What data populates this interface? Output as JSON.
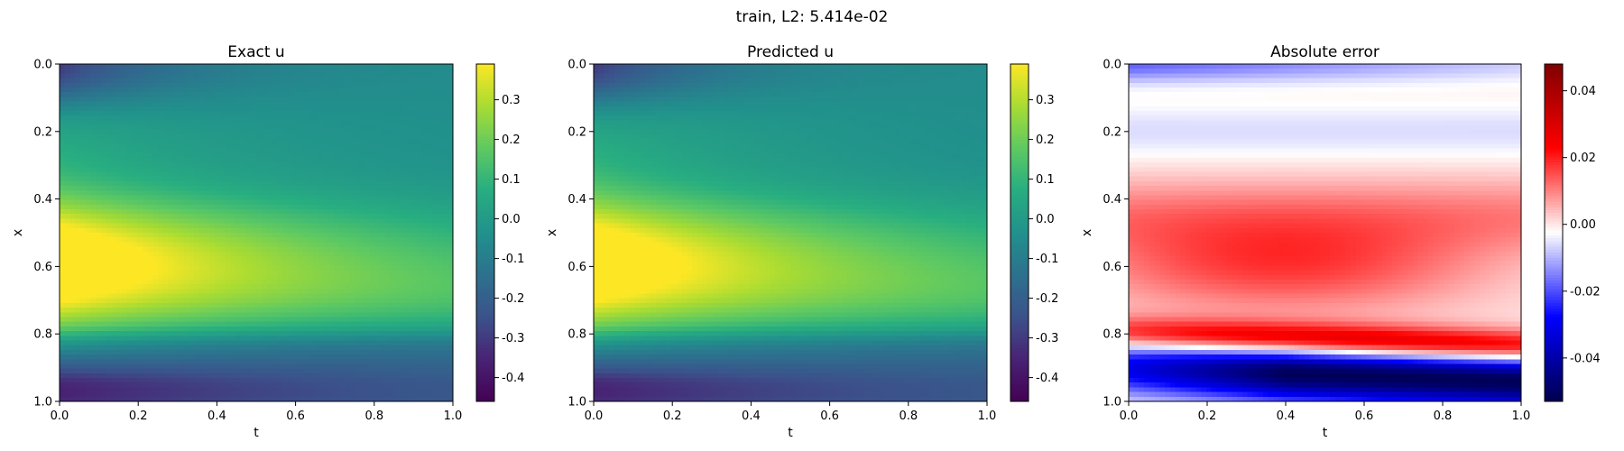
{
  "figure": {
    "suptitle": "train, L2: 5.414e-02"
  },
  "chart_data": [
    {
      "type": "heatmap",
      "title": "Exact u",
      "xlabel": "t",
      "ylabel": "x",
      "xlim": [
        0.0,
        1.0
      ],
      "ylim": [
        1.0,
        0.0
      ],
      "x_ticks": [
        "0.0",
        "0.2",
        "0.4",
        "0.6",
        "0.8",
        "1.0"
      ],
      "y_ticks": [
        "0.0",
        "0.2",
        "0.4",
        "0.6",
        "0.8",
        "1.0"
      ],
      "colormap": "viridis",
      "clim": [
        -0.46,
        0.39
      ],
      "colorbar_ticks": [
        "-0.4",
        "-0.3",
        "-0.2",
        "-0.1",
        "0.0",
        "0.1",
        "0.2",
        "0.3"
      ],
      "colorbar_tick_values": [
        -0.4,
        -0.3,
        -0.2,
        -0.1,
        0.0,
        0.1,
        0.2,
        0.3
      ],
      "field": "exact"
    },
    {
      "type": "heatmap",
      "title": "Predicted u",
      "xlabel": "t",
      "ylabel": "x",
      "xlim": [
        0.0,
        1.0
      ],
      "ylim": [
        1.0,
        0.0
      ],
      "x_ticks": [
        "0.0",
        "0.2",
        "0.4",
        "0.6",
        "0.8",
        "1.0"
      ],
      "y_ticks": [
        "0.0",
        "0.2",
        "0.4",
        "0.6",
        "0.8",
        "1.0"
      ],
      "colormap": "viridis",
      "clim": [
        -0.46,
        0.39
      ],
      "colorbar_ticks": [
        "-0.4",
        "-0.3",
        "-0.2",
        "-0.1",
        "0.0",
        "0.1",
        "0.2",
        "0.3"
      ],
      "colorbar_tick_values": [
        -0.4,
        -0.3,
        -0.2,
        -0.1,
        0.0,
        0.1,
        0.2,
        0.3
      ],
      "field": "predicted"
    },
    {
      "type": "heatmap",
      "title": "Absolute error",
      "xlabel": "t",
      "ylabel": "x",
      "xlim": [
        0.0,
        1.0
      ],
      "ylim": [
        1.0,
        0.0
      ],
      "x_ticks": [
        "0.0",
        "0.2",
        "0.4",
        "0.6",
        "0.8",
        "1.0"
      ],
      "y_ticks": [
        "0.0",
        "0.2",
        "0.4",
        "0.6",
        "0.8",
        "1.0"
      ],
      "colormap": "seismic",
      "clim": [
        -0.053,
        0.048
      ],
      "colorbar_ticks": [
        "-0.04",
        "-0.02",
        "0.00",
        "0.02",
        "0.04"
      ],
      "colorbar_tick_values": [
        -0.04,
        -0.02,
        0.0,
        0.02,
        0.04
      ],
      "field": "error"
    }
  ]
}
